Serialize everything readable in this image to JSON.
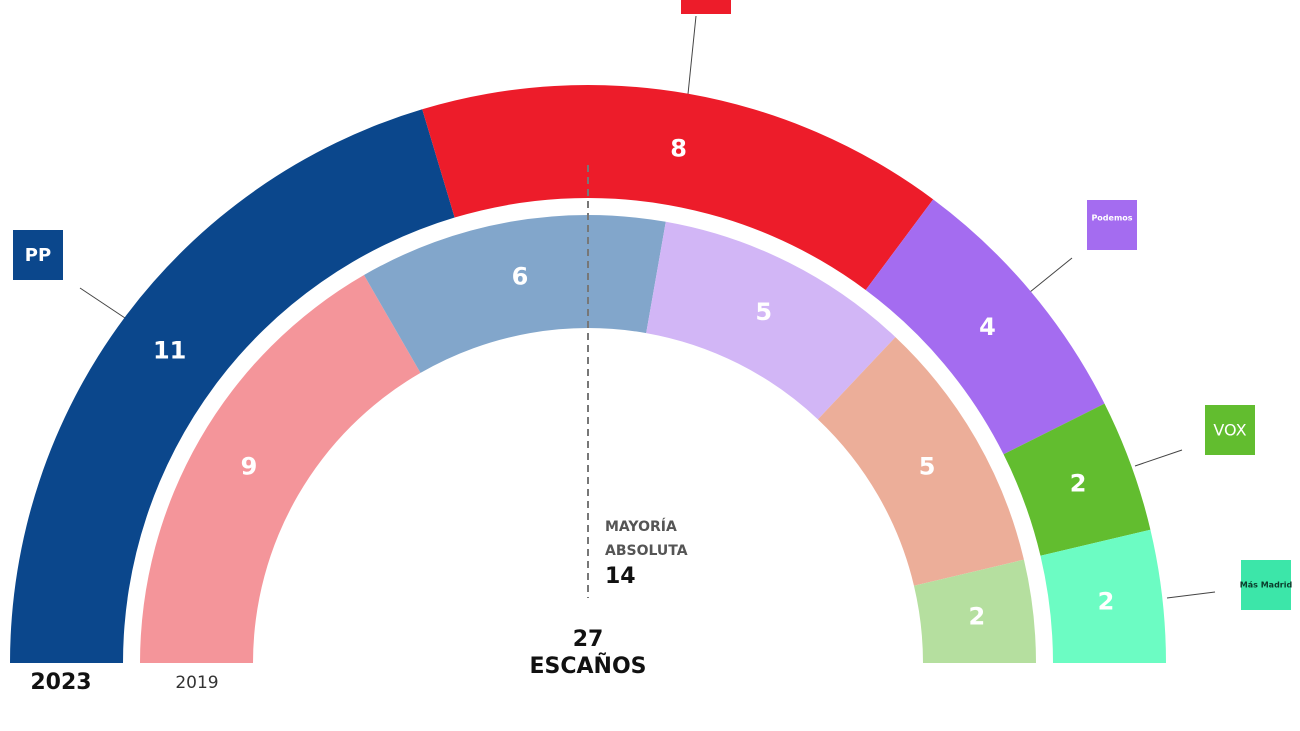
{
  "chart_data": {
    "type": "semicircle",
    "series": [
      {
        "name": "2023",
        "values": [
          11,
          8,
          4,
          2,
          2
        ],
        "colors": [
          "#0b478c",
          "#ed1c2a",
          "#a46cf0",
          "#62bd2f",
          "#6cfcc3"
        ]
      },
      {
        "name": "2019",
        "values": [
          9,
          6,
          5,
          5,
          2
        ],
        "colors": [
          "#f4959a",
          "#82a6cb",
          "#d2b6f6",
          "#ecae99",
          "#b5df9f"
        ]
      }
    ],
    "logo_labels": [
      "PP",
      "Podemos",
      "VOX",
      "Más Madrid"
    ],
    "majority_label": [
      "MAYORÍA",
      "ABSOLUTA"
    ],
    "majority": 14,
    "total": 27,
    "total_label": "ESCAÑOS"
  }
}
